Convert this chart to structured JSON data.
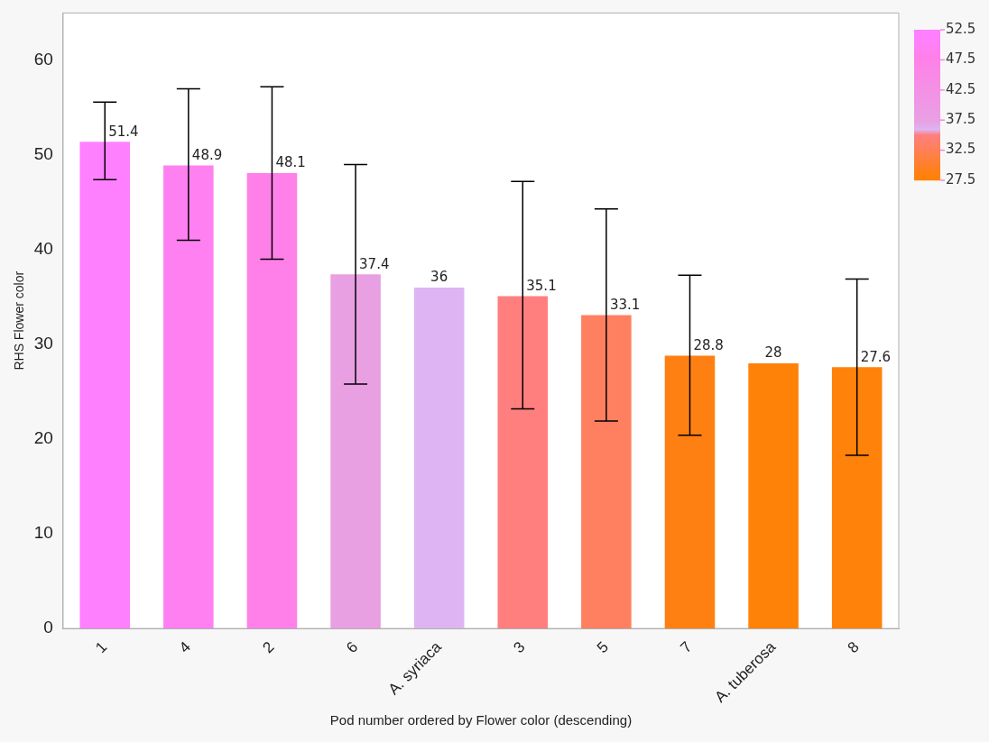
{
  "chart_data": {
    "type": "bar",
    "xlabel": "Pod number ordered by Flower color (descending)",
    "ylabel": "RHS Flower color",
    "categories": [
      "1",
      "4",
      "2",
      "6",
      "A. syriaca",
      "3",
      "5",
      "7",
      "A. tuberosa",
      "8"
    ],
    "values": [
      51.4,
      48.9,
      48.1,
      37.4,
      36,
      35.1,
      33.1,
      28.8,
      28,
      27.6
    ],
    "colors": [
      "#ff80ff",
      "#ff80f0",
      "#ff80e8",
      "#e9a0e3",
      "#deb4f2",
      "#ff7f7f",
      "#ff8060",
      "#ff8012",
      "#ff8208",
      "#ff820a"
    ],
    "errors": [
      [
        47.4,
        55.6
      ],
      [
        41.0,
        57.0
      ],
      [
        39.0,
        57.2
      ],
      [
        25.8,
        49.0
      ],
      null,
      [
        23.2,
        47.2
      ],
      [
        21.9,
        44.3
      ],
      [
        20.4,
        37.3
      ],
      null,
      [
        18.3,
        36.9
      ]
    ],
    "data_labels": true,
    "ylim": [
      0,
      65
    ],
    "yticks": [
      0,
      10,
      20,
      30,
      40,
      50,
      60
    ],
    "clim": [
      27.5,
      52.5
    ],
    "cticks": [
      27.5,
      32.5,
      37.5,
      42.5,
      47.5,
      52.5
    ],
    "grid": false,
    "legend": false
  }
}
